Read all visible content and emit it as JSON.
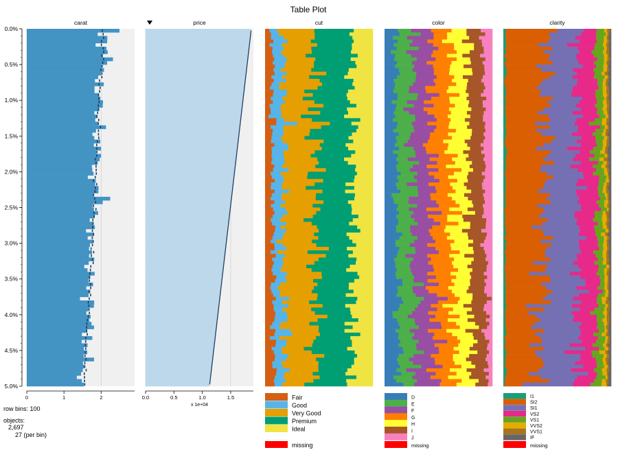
{
  "chart_data": {
    "type": "table",
    "title": "Table Plot",
    "row_bins": 100,
    "sort_column": "price",
    "row_axis": {
      "ticks": [
        "0.0%",
        "0.5%",
        "1.0%",
        "1.5%",
        "2.0%",
        "2.5%",
        "3.0%",
        "3.5%",
        "4.0%",
        "4.5%",
        "5.0%"
      ]
    },
    "columns": [
      {
        "name": "carat",
        "kind": "numeric",
        "xlim": [
          0,
          2.9
        ],
        "xticks": [
          0,
          1,
          2
        ],
        "xtick_labels": [
          "0",
          "1",
          "2"
        ],
        "mean_start": 2.06,
        "mean_end": 1.55
      },
      {
        "name": "price",
        "kind": "numeric",
        "xlim": [
          0,
          1.9
        ],
        "xticks": [
          0,
          0.5,
          1,
          1.5
        ],
        "xtick_labels": [
          "0.0",
          "0.5",
          "1.0",
          "1.5"
        ],
        "scale_label": "x 1e+04",
        "mean_start": 1.86,
        "mean_end": 1.13,
        "sorted": true
      },
      {
        "name": "cut",
        "kind": "categorical",
        "categories": [
          "Fair",
          "Good",
          "Very Good",
          "Premium",
          "Ideal"
        ],
        "colors": [
          "#d45f13",
          "#56b4e9",
          "#e69f00",
          "#009e73",
          "#f0e442"
        ],
        "avg_proportions": [
          0.06,
          0.1,
          0.3,
          0.34,
          0.2
        ],
        "missing_color": "#ff0000",
        "missing_label": "missing"
      },
      {
        "name": "color",
        "kind": "categorical",
        "categories": [
          "D",
          "E",
          "F",
          "G",
          "H",
          "I",
          "J"
        ],
        "colors": [
          "#377eb8",
          "#4daf4a",
          "#984ea3",
          "#ff7f00",
          "#ffff33",
          "#a65628",
          "#f781bf"
        ],
        "avg_proportions": [
          0.1,
          0.15,
          0.18,
          0.18,
          0.16,
          0.14,
          0.09
        ],
        "missing_color": "#ff0000",
        "missing_label": "missing"
      },
      {
        "name": "clarity",
        "kind": "categorical",
        "categories": [
          "I1",
          "SI2",
          "SI1",
          "VS2",
          "VS1",
          "VVS2",
          "VVS1",
          "IF"
        ],
        "colors": [
          "#1b9e77",
          "#d95f02",
          "#7570b3",
          "#e7298a",
          "#66a61e",
          "#e6ab02",
          "#a6761d",
          "#666666"
        ],
        "avg_proportions": [
          0.02,
          0.4,
          0.27,
          0.17,
          0.07,
          0.03,
          0.02,
          0.02
        ],
        "missing_color": "#ff0000",
        "missing_label": "missing"
      }
    ]
  },
  "info": {
    "row_bins_text": "row bins: 100",
    "objects_label": "objects:",
    "objects_count": "2,697",
    "per_bin_text": "27 (per bin)"
  }
}
